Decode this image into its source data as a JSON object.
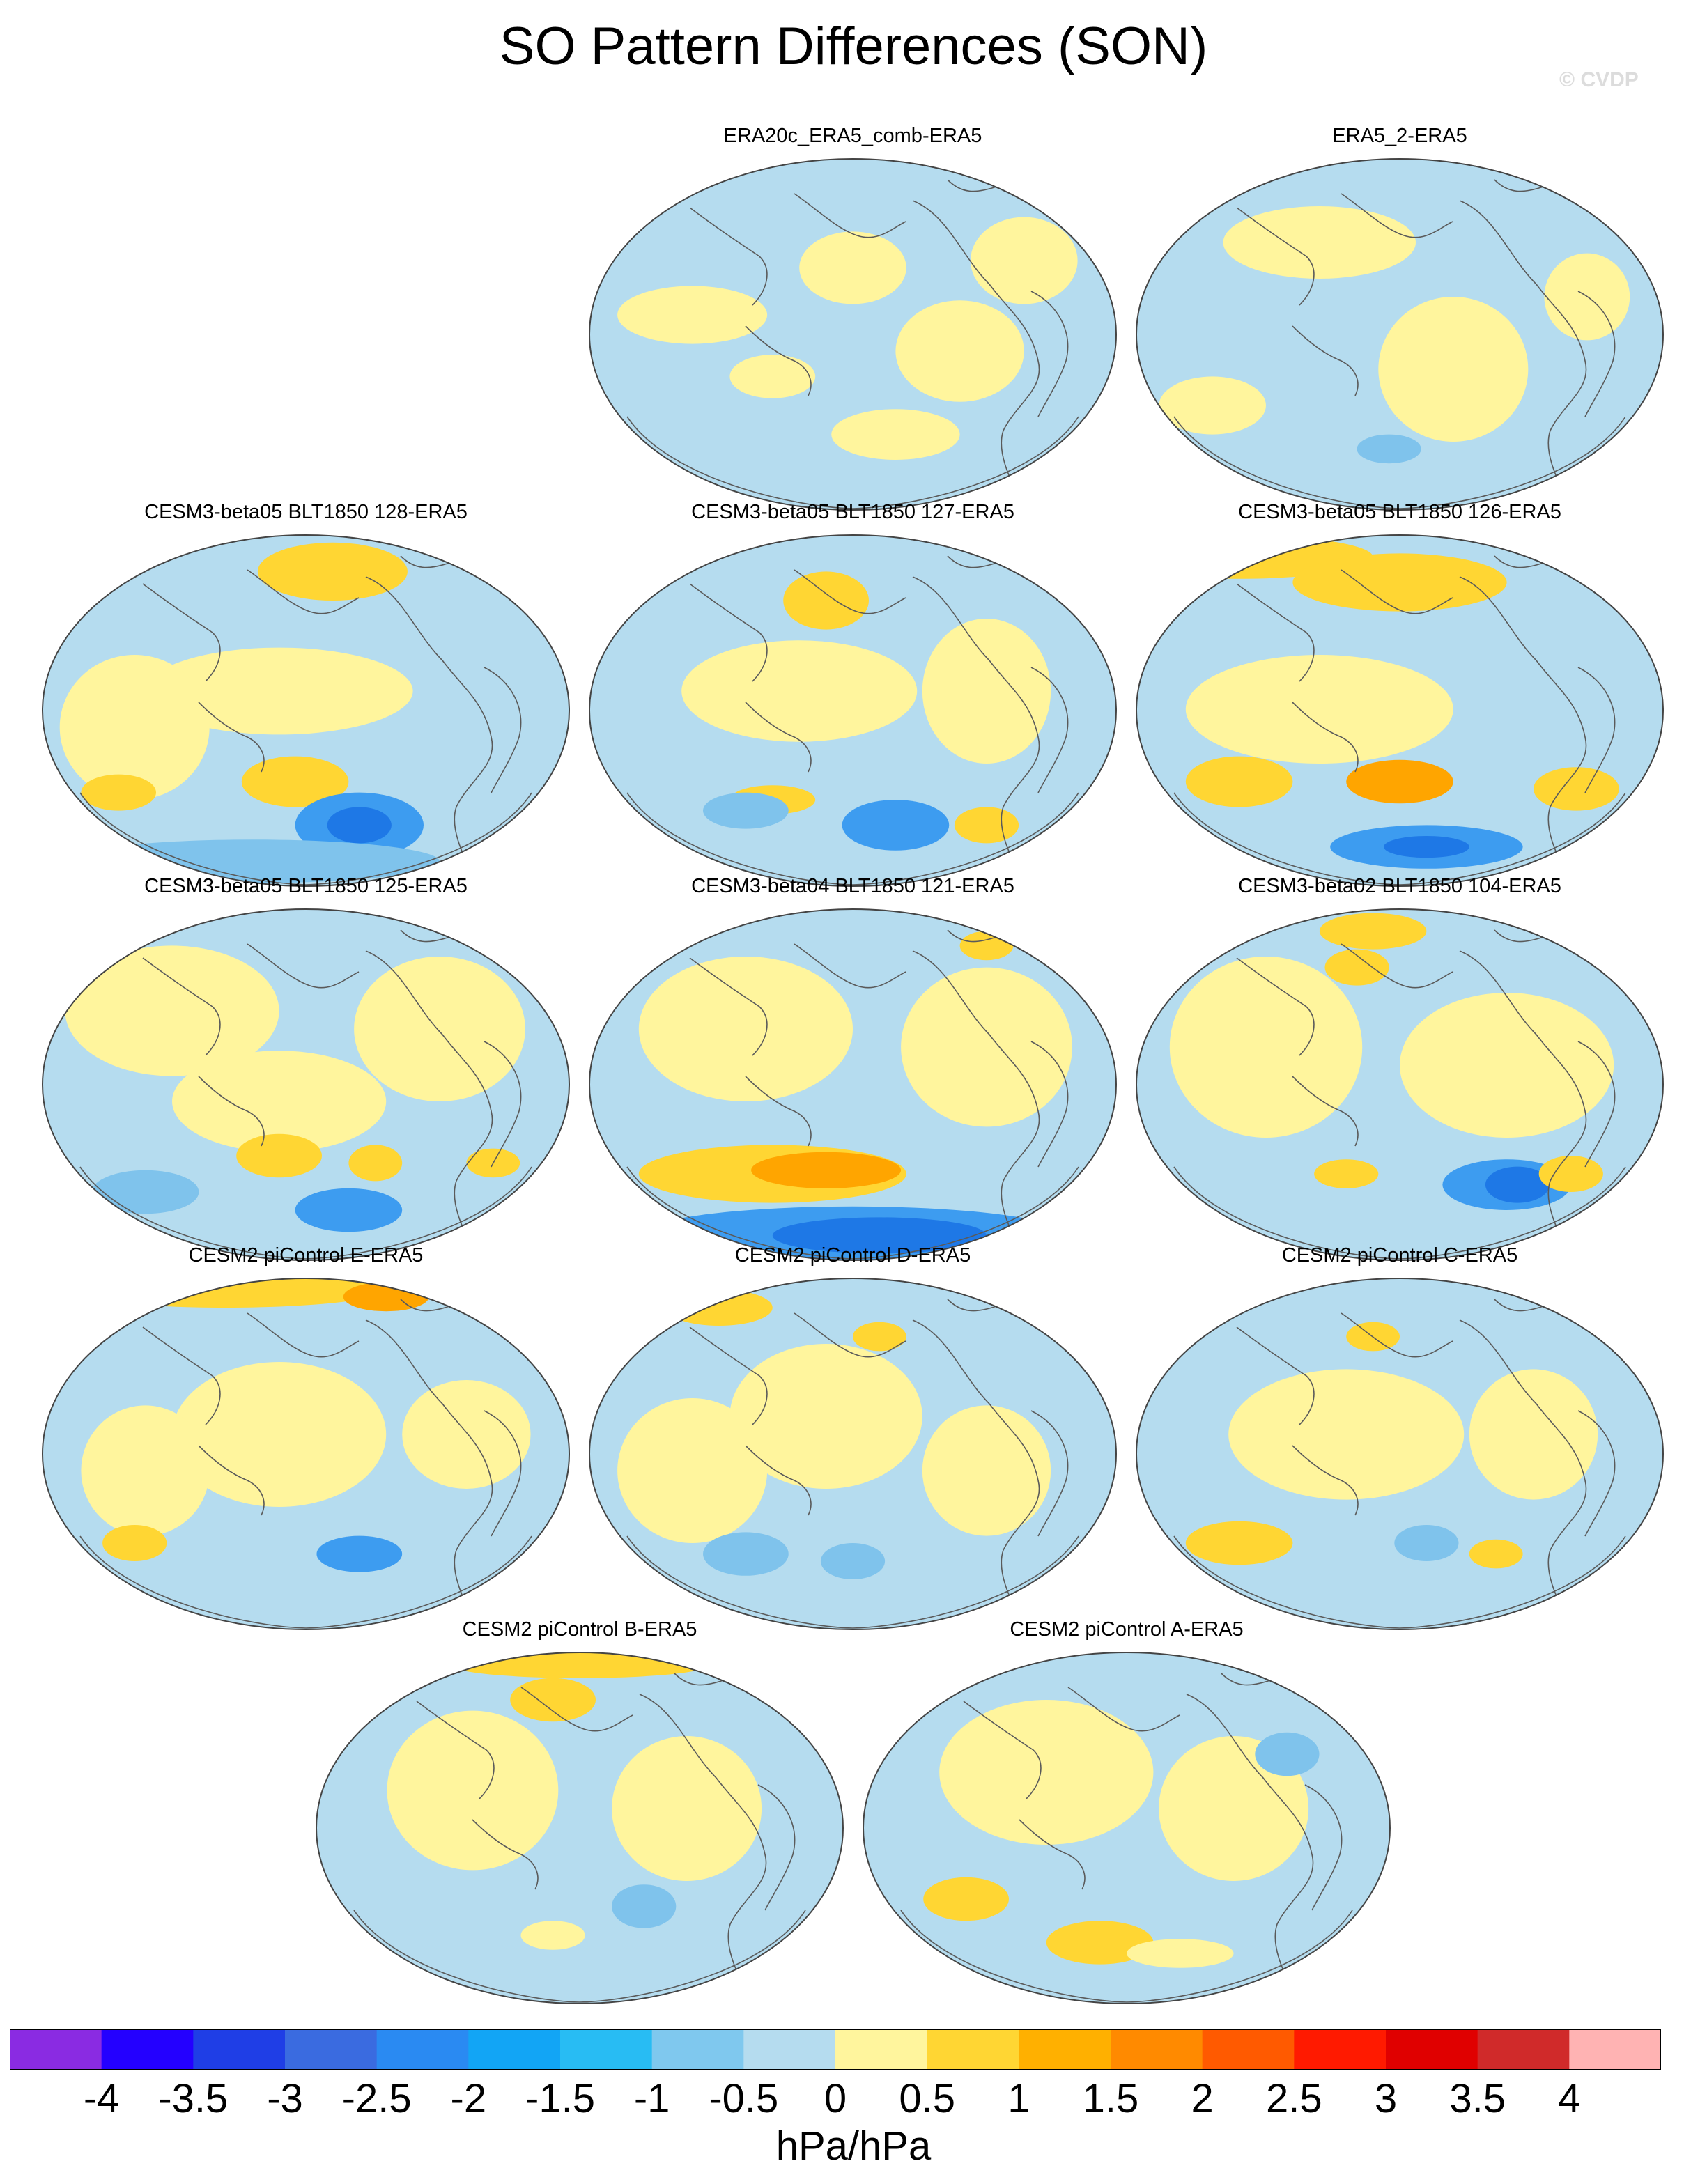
{
  "title": "SO Pattern Differences (SON)",
  "watermark": "© CVDP",
  "colors": {
    "ocean_base": "#b5dcef",
    "land_outline": "#5a5a5a",
    "map_border": "#444444"
  },
  "panels": [
    {
      "name": "ERA20c_ERA5_comb-ERA5",
      "blobs": [
        [
          0.5,
          0.32,
          0.1,
          0.1,
          "#fff59d"
        ],
        [
          0.2,
          0.45,
          0.14,
          0.08,
          "#fff59d"
        ],
        [
          0.7,
          0.55,
          0.12,
          0.14,
          "#fff59d"
        ],
        [
          0.58,
          0.78,
          0.12,
          0.07,
          "#fff59d"
        ],
        [
          0.35,
          0.62,
          0.08,
          0.06,
          "#fff59d"
        ],
        [
          0.82,
          0.3,
          0.1,
          0.12,
          "#fff59d"
        ]
      ]
    },
    {
      "name": "ERA5_2-ERA5",
      "blobs": [
        [
          0.35,
          0.25,
          0.18,
          0.1,
          "#fff59d"
        ],
        [
          0.6,
          0.6,
          0.14,
          0.2,
          "#fff59d"
        ],
        [
          0.85,
          0.4,
          0.08,
          0.12,
          "#fff59d"
        ],
        [
          0.15,
          0.7,
          0.1,
          0.08,
          "#fff59d"
        ],
        [
          0.48,
          0.82,
          0.06,
          0.04,
          "#7fc3ec"
        ]
      ]
    },
    {
      "name": "CESM3-beta05 BLT1850 128-ERA5",
      "blobs": [
        [
          0.45,
          0.45,
          0.25,
          0.12,
          "#fff59d"
        ],
        [
          0.18,
          0.55,
          0.14,
          0.2,
          "#fff59d"
        ],
        [
          0.55,
          0.12,
          0.14,
          0.08,
          "#ffd633"
        ],
        [
          0.48,
          0.7,
          0.1,
          0.07,
          "#ffd633"
        ],
        [
          0.15,
          0.73,
          0.07,
          0.05,
          "#ffd633"
        ],
        [
          0.6,
          0.82,
          0.12,
          0.09,
          "#3d9cf0"
        ],
        [
          0.6,
          0.82,
          0.06,
          0.05,
          "#1e78e6"
        ],
        [
          0.4,
          0.92,
          0.35,
          0.06,
          "#7fc3ec"
        ]
      ]
    },
    {
      "name": "CESM3-beta05 BLT1850 127-ERA5",
      "blobs": [
        [
          0.4,
          0.45,
          0.22,
          0.14,
          "#fff59d"
        ],
        [
          0.75,
          0.45,
          0.12,
          0.2,
          "#fff59d"
        ],
        [
          0.45,
          0.2,
          0.08,
          0.08,
          "#ffd633"
        ],
        [
          0.35,
          0.75,
          0.08,
          0.04,
          "#ffd633"
        ],
        [
          0.58,
          0.82,
          0.1,
          0.07,
          "#3d9cf0"
        ],
        [
          0.3,
          0.78,
          0.08,
          0.05,
          "#7fc3ec"
        ],
        [
          0.75,
          0.82,
          0.06,
          0.05,
          "#ffd633"
        ]
      ]
    },
    {
      "name": "CESM3-beta05 BLT1850 126-ERA5",
      "blobs": [
        [
          0.2,
          0.08,
          0.25,
          0.06,
          "#ffd633"
        ],
        [
          0.5,
          0.15,
          0.2,
          0.08,
          "#ffd633"
        ],
        [
          0.35,
          0.5,
          0.25,
          0.15,
          "#fff59d"
        ],
        [
          0.2,
          0.7,
          0.1,
          0.07,
          "#ffd633"
        ],
        [
          0.5,
          0.7,
          0.1,
          0.06,
          "#ffa500"
        ],
        [
          0.83,
          0.72,
          0.08,
          0.06,
          "#ffd633"
        ],
        [
          0.55,
          0.88,
          0.18,
          0.06,
          "#3d9cf0"
        ],
        [
          0.55,
          0.88,
          0.08,
          0.03,
          "#1e78e6"
        ]
      ]
    },
    {
      "name": "CESM3-beta05 BLT1850 125-ERA5",
      "blobs": [
        [
          0.25,
          0.3,
          0.2,
          0.18,
          "#fff59d"
        ],
        [
          0.75,
          0.35,
          0.16,
          0.2,
          "#fff59d"
        ],
        [
          0.45,
          0.55,
          0.2,
          0.14,
          "#fff59d"
        ],
        [
          0.45,
          0.7,
          0.08,
          0.06,
          "#ffd633"
        ],
        [
          0.63,
          0.72,
          0.05,
          0.05,
          "#ffd633"
        ],
        [
          0.85,
          0.72,
          0.05,
          0.04,
          "#ffd633"
        ],
        [
          0.58,
          0.85,
          0.1,
          0.06,
          "#3d9cf0"
        ],
        [
          0.2,
          0.8,
          0.1,
          0.06,
          "#7fc3ec"
        ]
      ]
    },
    {
      "name": "CESM3-beta04 BLT1850 121-ERA5",
      "blobs": [
        [
          0.3,
          0.35,
          0.2,
          0.2,
          "#fff59d"
        ],
        [
          0.75,
          0.4,
          0.16,
          0.22,
          "#fff59d"
        ],
        [
          0.35,
          0.75,
          0.25,
          0.08,
          "#ffd633"
        ],
        [
          0.45,
          0.74,
          0.14,
          0.05,
          "#ffa500"
        ],
        [
          0.5,
          0.92,
          0.4,
          0.08,
          "#3d9cf0"
        ],
        [
          0.55,
          0.92,
          0.2,
          0.05,
          "#1e78e6"
        ],
        [
          0.75,
          0.12,
          0.05,
          0.04,
          "#ffd633"
        ]
      ]
    },
    {
      "name": "CESM3-beta02 BLT1850 104-ERA5",
      "blobs": [
        [
          0.25,
          0.4,
          0.18,
          0.25,
          "#fff59d"
        ],
        [
          0.7,
          0.45,
          0.2,
          0.2,
          "#fff59d"
        ],
        [
          0.45,
          0.08,
          0.1,
          0.05,
          "#ffd633"
        ],
        [
          0.42,
          0.18,
          0.06,
          0.05,
          "#ffd633"
        ],
        [
          0.7,
          0.78,
          0.12,
          0.07,
          "#3d9cf0"
        ],
        [
          0.72,
          0.78,
          0.06,
          0.05,
          "#1e78e6"
        ],
        [
          0.82,
          0.75,
          0.06,
          0.05,
          "#ffd633"
        ],
        [
          0.4,
          0.75,
          0.06,
          0.04,
          "#ffd633"
        ]
      ]
    },
    {
      "name": "CESM2 piControl E-ERA5",
      "blobs": [
        [
          0.35,
          0.05,
          0.3,
          0.05,
          "#ffd633"
        ],
        [
          0.65,
          0.07,
          0.08,
          0.04,
          "#ffa500"
        ],
        [
          0.45,
          0.45,
          0.2,
          0.2,
          "#fff59d"
        ],
        [
          0.2,
          0.55,
          0.12,
          0.18,
          "#fff59d"
        ],
        [
          0.8,
          0.45,
          0.12,
          0.15,
          "#fff59d"
        ],
        [
          0.18,
          0.75,
          0.06,
          0.05,
          "#ffd633"
        ],
        [
          0.6,
          0.78,
          0.08,
          0.05,
          "#3d9cf0"
        ]
      ]
    },
    {
      "name": "CESM2 piControl D-ERA5",
      "blobs": [
        [
          0.45,
          0.4,
          0.18,
          0.2,
          "#fff59d"
        ],
        [
          0.2,
          0.55,
          0.14,
          0.2,
          "#fff59d"
        ],
        [
          0.75,
          0.55,
          0.12,
          0.18,
          "#fff59d"
        ],
        [
          0.25,
          0.1,
          0.1,
          0.05,
          "#ffd633"
        ],
        [
          0.55,
          0.18,
          0.05,
          0.04,
          "#ffd633"
        ],
        [
          0.3,
          0.78,
          0.08,
          0.06,
          "#7fc3ec"
        ],
        [
          0.5,
          0.8,
          0.06,
          0.05,
          "#7fc3ec"
        ]
      ]
    },
    {
      "name": "CESM2 piControl C-ERA5",
      "blobs": [
        [
          0.4,
          0.45,
          0.22,
          0.18,
          "#fff59d"
        ],
        [
          0.75,
          0.45,
          0.12,
          0.18,
          "#fff59d"
        ],
        [
          0.45,
          0.18,
          0.05,
          0.04,
          "#ffd633"
        ],
        [
          0.2,
          0.75,
          0.1,
          0.06,
          "#ffd633"
        ],
        [
          0.55,
          0.75,
          0.06,
          0.05,
          "#7fc3ec"
        ],
        [
          0.68,
          0.78,
          0.05,
          0.04,
          "#ffd633"
        ]
      ]
    },
    {
      "name": "CESM2 piControl B-ERA5",
      "blobs": [
        [
          0.3,
          0.4,
          0.16,
          0.22,
          "#fff59d"
        ],
        [
          0.7,
          0.45,
          0.14,
          0.2,
          "#fff59d"
        ],
        [
          0.45,
          0.15,
          0.08,
          0.06,
          "#ffd633"
        ],
        [
          0.5,
          0.05,
          0.25,
          0.04,
          "#ffd633"
        ],
        [
          0.62,
          0.72,
          0.06,
          0.06,
          "#7fc3ec"
        ],
        [
          0.45,
          0.8,
          0.06,
          0.04,
          "#fff59d"
        ]
      ]
    },
    {
      "name": "CESM2 piControl A-ERA5",
      "blobs": [
        [
          0.35,
          0.35,
          0.2,
          0.2,
          "#fff59d"
        ],
        [
          0.7,
          0.45,
          0.14,
          0.2,
          "#fff59d"
        ],
        [
          0.2,
          0.7,
          0.08,
          0.06,
          "#ffd633"
        ],
        [
          0.45,
          0.82,
          0.1,
          0.06,
          "#ffd633"
        ],
        [
          0.8,
          0.3,
          0.06,
          0.06,
          "#7fc3ec"
        ],
        [
          0.6,
          0.85,
          0.1,
          0.04,
          "#fff59d"
        ]
      ]
    }
  ],
  "colorbar": {
    "colors": [
      "#8a2be2",
      "#2400ff",
      "#1f3ee6",
      "#3a6be0",
      "#2a8af2",
      "#12a5f5",
      "#28bcf3",
      "#7fc8ee",
      "#b5dcef",
      "#fff59d",
      "#ffd633",
      "#ffb000",
      "#ff8a00",
      "#ff5a00",
      "#ff1a00",
      "#e00000",
      "#d02a2a",
      "#ffb3b3"
    ],
    "labels": [
      "-4",
      "-3.5",
      "-3",
      "-2.5",
      "-2",
      "-1.5",
      "-1",
      "-0.5",
      "0",
      "0.5",
      "1",
      "1.5",
      "2",
      "2.5",
      "3",
      "3.5",
      "4"
    ]
  },
  "units": "hPa/hPa"
}
